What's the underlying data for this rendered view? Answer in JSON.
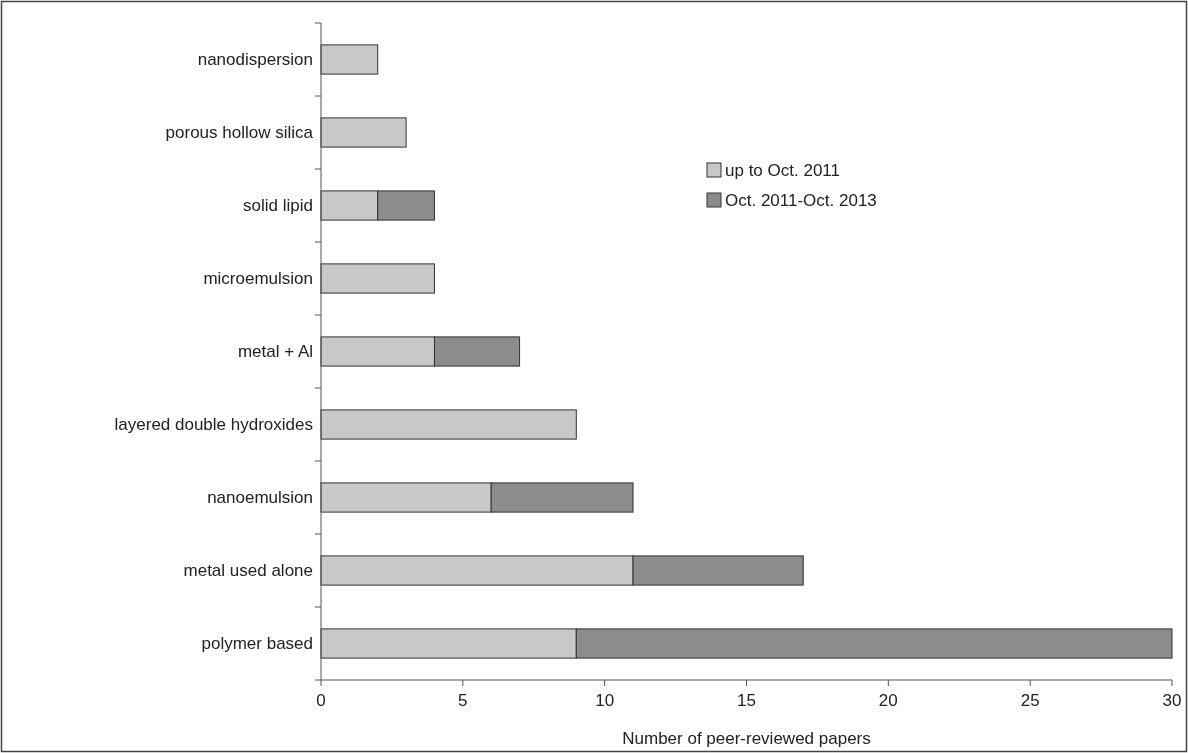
{
  "chart_data": {
    "type": "bar",
    "orientation": "horizontal",
    "stacked": true,
    "xlabel": "Number of peer-reviewed papers",
    "categories": [
      "nanodispersion",
      "porous hollow silica",
      "solid lipid",
      "microemulsion",
      "metal + Al",
      "layered double hydroxides",
      "nanoemulsion",
      "metal used alone",
      "polymer based"
    ],
    "series": [
      {
        "name": "up to Oct. 2011",
        "color": "#c8c8c8",
        "values": [
          2,
          3,
          2,
          4,
          4,
          9,
          6,
          11,
          9
        ]
      },
      {
        "name": "Oct. 2011-Oct. 2013",
        "color": "#8c8c8c",
        "values": [
          0,
          0,
          2,
          0,
          3,
          0,
          5,
          6,
          21
        ]
      }
    ],
    "xlim": [
      0,
      30
    ],
    "xticks": [
      0,
      5,
      10,
      15,
      20,
      25,
      30
    ],
    "grid": false,
    "legend": "top right"
  }
}
